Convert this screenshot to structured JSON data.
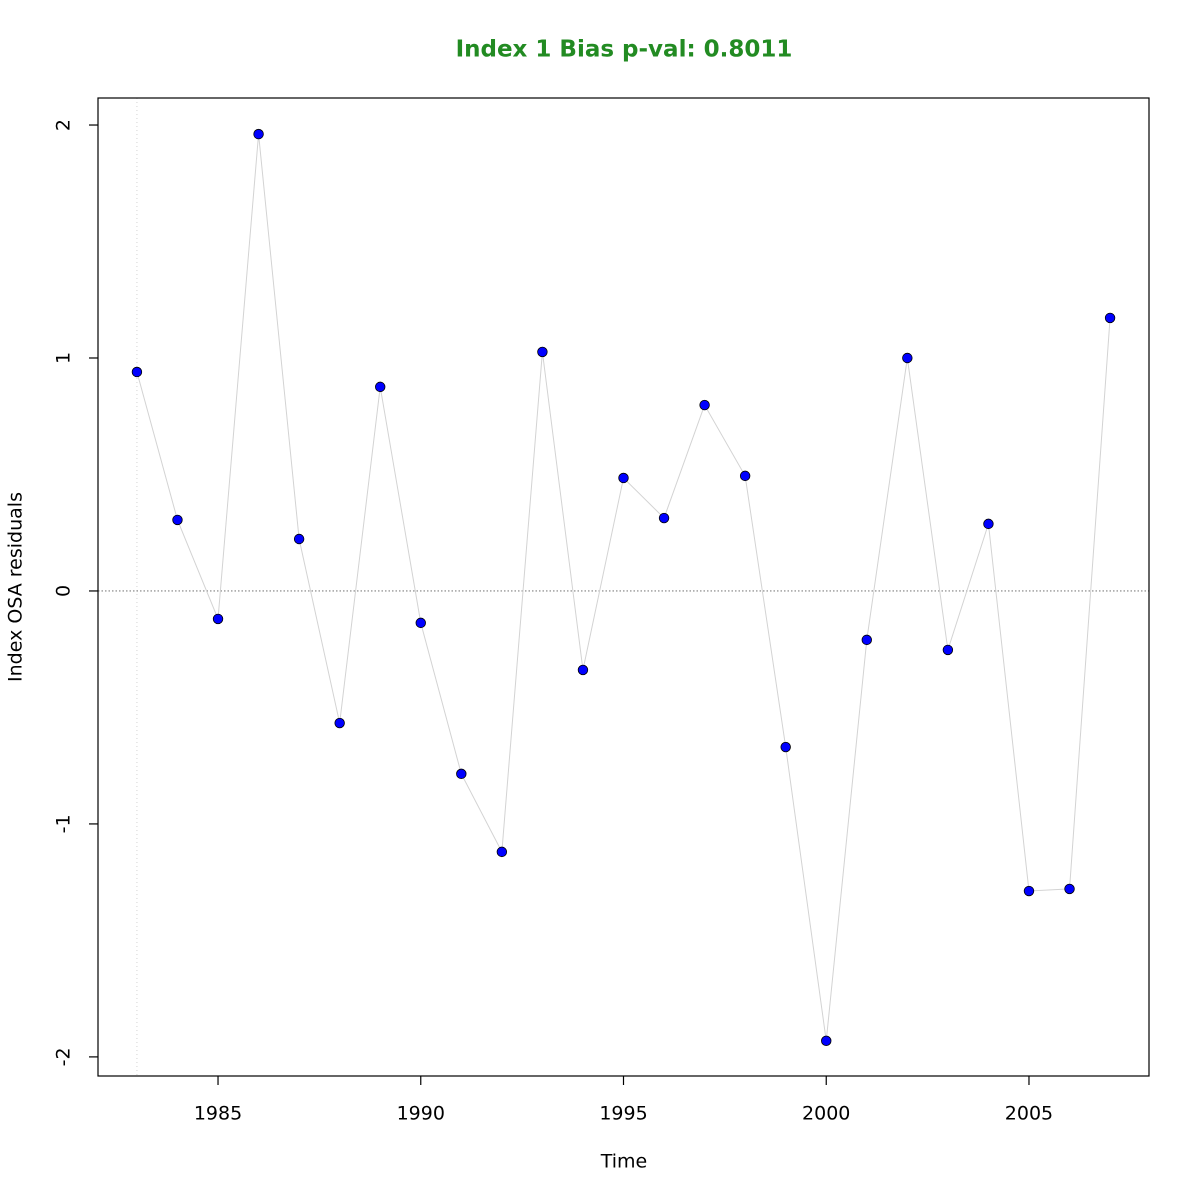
{
  "chart_data": {
    "type": "line",
    "title": "Index 1 Bias p-val: 0.8011",
    "x_label": "Time",
    "y_label": "Index OSA residuals",
    "x": [
      1983,
      1984,
      1985,
      1986,
      1987,
      1988,
      1989,
      1990,
      1991,
      1992,
      1993,
      1994,
      1995,
      1996,
      1997,
      1998,
      1999,
      2000,
      2001,
      2002,
      2003,
      2004,
      2005,
      2006,
      2007
    ],
    "series": [
      {
        "name": "Index 1",
        "color": "#0000ff",
        "values": [
          0.94,
          0.305,
          -0.12,
          1.961,
          0.223,
          -0.567,
          0.876,
          -0.137,
          -0.785,
          -1.12,
          1.026,
          -0.339,
          0.485,
          0.313,
          0.798,
          0.494,
          -0.67,
          -1.931,
          -0.21,
          1.0,
          -0.253,
          0.288,
          -1.288,
          -1.279,
          1.172
        ]
      }
    ],
    "xlim": [
      1982.04,
      2007.96
    ],
    "xticks": [
      1985,
      1990,
      1995,
      2000,
      2005
    ],
    "ylim": [
      -2.082,
      2.116
    ],
    "yticks": [
      -2,
      -1,
      0,
      1,
      2
    ],
    "reference_lines": {
      "y": 0,
      "x": 1983
    }
  }
}
